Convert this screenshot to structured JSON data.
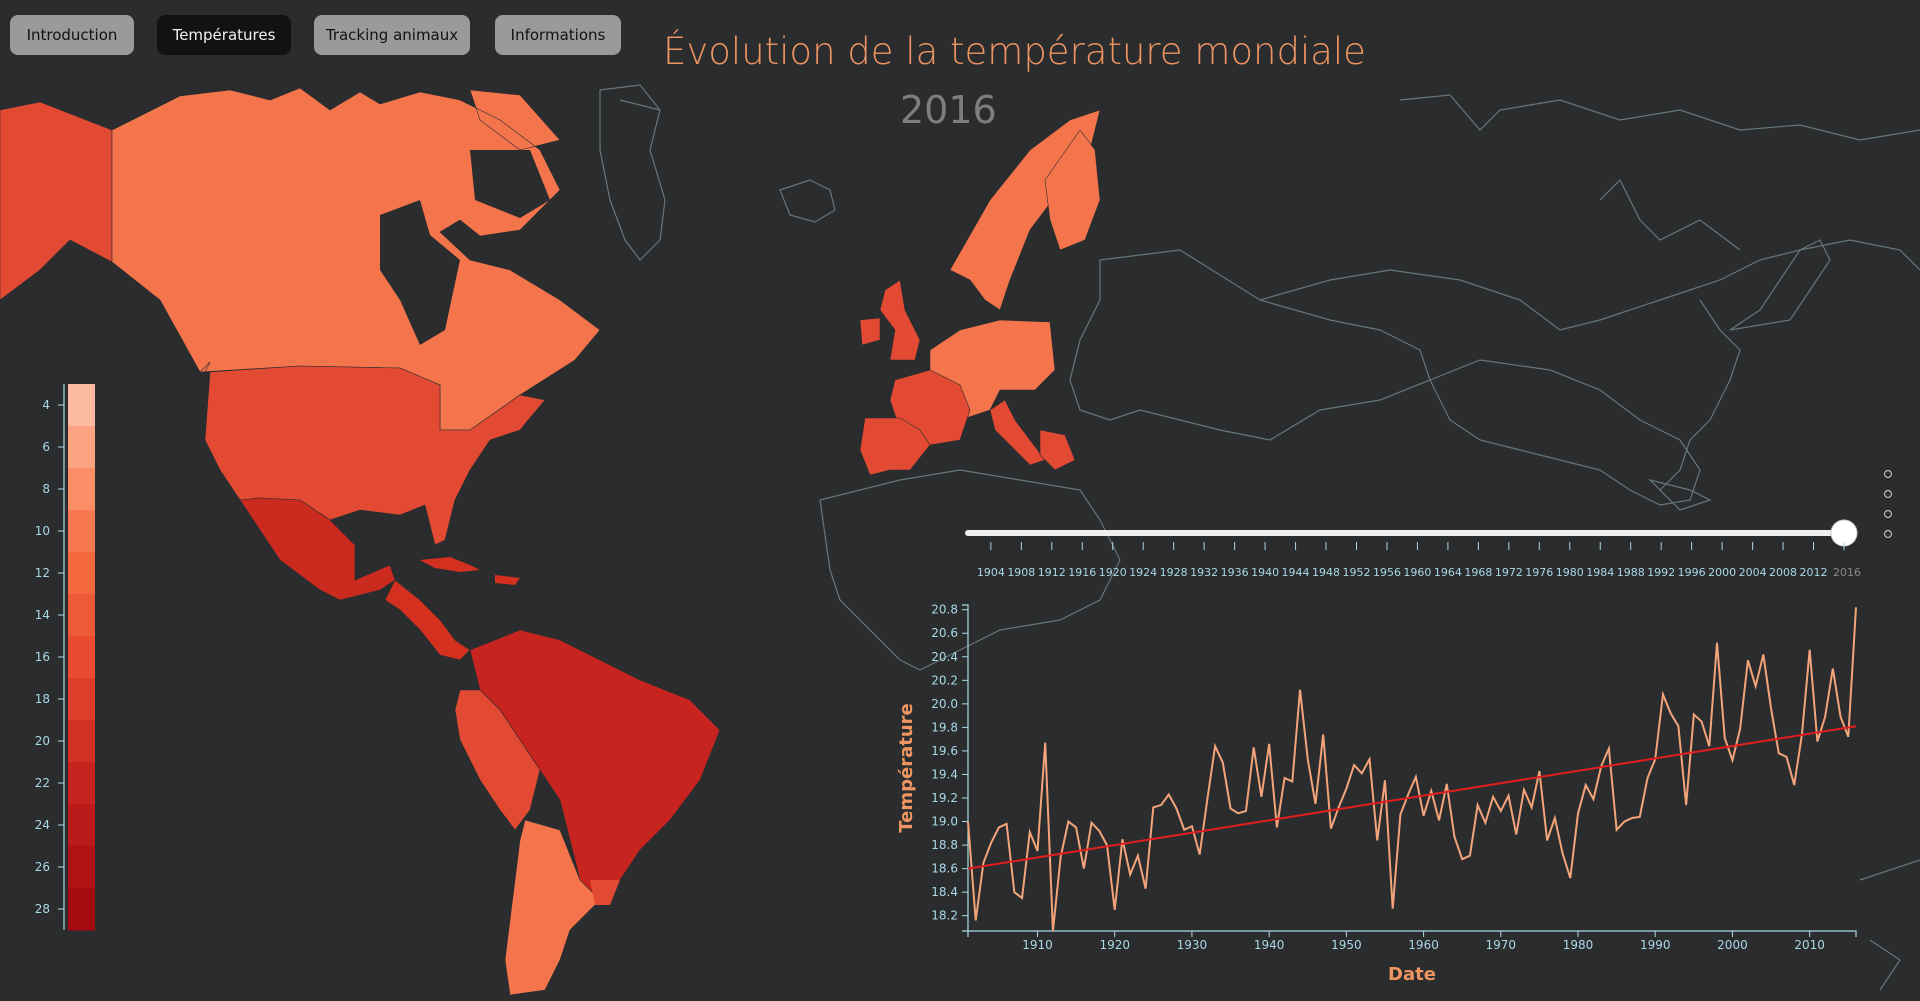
{
  "nav": {
    "items": [
      {
        "label": "Introduction",
        "active": false
      },
      {
        "label": "Températures",
        "active": true
      },
      {
        "label": "Tracking animaux",
        "active": false
      },
      {
        "label": "Informations",
        "active": false
      }
    ]
  },
  "header": {
    "title": "Évolution de la température mondiale",
    "year": "2016"
  },
  "legend": {
    "ticks": [
      "4",
      "6",
      "8",
      "10",
      "12",
      "14",
      "16",
      "18",
      "20",
      "22",
      "24",
      "26",
      "28"
    ],
    "range": [
      3,
      29
    ],
    "colors": [
      "#fcbba1",
      "#fca482",
      "#fb8e67",
      "#f8794f",
      "#f4683f",
      "#ef5a36",
      "#e84b30",
      "#de3d2a",
      "#d33024",
      "#c8241f",
      "#bb1a1a",
      "#ae1215",
      "#a30b10"
    ]
  },
  "slider": {
    "ticks": [
      "1904",
      "1908",
      "1912",
      "1916",
      "1920",
      "1924",
      "1928",
      "1932",
      "1936",
      "1940",
      "1944",
      "1948",
      "1952",
      "1956",
      "1960",
      "1964",
      "1968",
      "1972",
      "1976",
      "1980",
      "1984",
      "1988",
      "1992",
      "1996",
      "2000",
      "2004",
      "2008",
      "2012",
      "2016"
    ],
    "value": 2016,
    "min": 1901,
    "max": 2016
  },
  "pagination": {
    "dots": 4
  },
  "colors": {
    "accent": "#ee9561",
    "line": "#f4a47a",
    "trend": "#e01e1e",
    "axis": "#a9d8e6",
    "background": "#2b2c2e"
  },
  "chart_data": {
    "type": "line",
    "xlabel": "Date",
    "ylabel": "Température",
    "xlim": [
      1901,
      2016
    ],
    "ylim": [
      18.07,
      20.84
    ],
    "xticks": [
      1910,
      1920,
      1930,
      1940,
      1950,
      1960,
      1970,
      1980,
      1990,
      2000,
      2010
    ],
    "yticks": [
      18.2,
      18.4,
      18.6,
      18.8,
      19.0,
      19.2,
      19.4,
      19.6,
      19.8,
      20.0,
      20.2,
      20.4,
      20.6,
      20.8
    ],
    "series": [
      {
        "x": [
          1901,
          1902,
          1903,
          1904,
          1905,
          1906,
          1907,
          1908,
          1909,
          1910,
          1911,
          1912,
          1913,
          1914,
          1915,
          1916,
          1917,
          1918,
          1919,
          1920,
          1921,
          1922,
          1923,
          1924,
          1925,
          1926,
          1927,
          1928,
          1929,
          1930,
          1931,
          1932,
          1933,
          1934,
          1935,
          1936,
          1937,
          1938,
          1939,
          1940,
          1941,
          1942,
          1943,
          1944,
          1945,
          1946,
          1947,
          1948,
          1949,
          1950,
          1951,
          1952,
          1953,
          1954,
          1955,
          1956,
          1957,
          1958,
          1959,
          1960,
          1961,
          1962,
          1963,
          1964,
          1965,
          1966,
          1967,
          1968,
          1969,
          1970,
          1971,
          1972,
          1973,
          1974,
          1975,
          1976,
          1977,
          1978,
          1979,
          1980,
          1981,
          1982,
          1983,
          1984,
          1985,
          1986,
          1987,
          1988,
          1989,
          1990,
          1991,
          1992,
          1993,
          1994,
          1995,
          1996,
          1997,
          1998,
          1999,
          2000,
          2001,
          2002,
          2003,
          2004,
          2005,
          2006,
          2007,
          2008,
          2009,
          2010,
          2011,
          2012,
          2013,
          2014,
          2015,
          2016
        ],
        "values": [
          19.0,
          18.16,
          18.65,
          18.82,
          18.95,
          18.98,
          18.4,
          18.35,
          18.91,
          18.75,
          19.67,
          18.07,
          18.7,
          19.0,
          18.95,
          18.6,
          18.99,
          18.92,
          18.8,
          18.25,
          18.85,
          18.55,
          18.71,
          18.43,
          19.12,
          19.14,
          19.23,
          19.11,
          18.93,
          18.96,
          18.72,
          19.19,
          19.64,
          19.5,
          19.11,
          19.07,
          19.09,
          19.63,
          19.21,
          19.66,
          18.95,
          19.37,
          19.34,
          20.12,
          19.53,
          19.15,
          19.74,
          18.94,
          19.12,
          19.28,
          19.48,
          19.41,
          19.53,
          18.84,
          19.35,
          18.26,
          19.06,
          19.23,
          19.38,
          19.05,
          19.26,
          19.01,
          19.32,
          18.87,
          18.68,
          18.71,
          19.14,
          18.99,
          19.21,
          19.09,
          19.22,
          18.89,
          19.27,
          19.12,
          19.43,
          18.84,
          19.03,
          18.73,
          18.52,
          19.07,
          19.31,
          19.19,
          19.47,
          19.62,
          18.93,
          19.0,
          19.03,
          19.04,
          19.37,
          19.53,
          20.08,
          19.92,
          19.81,
          19.14,
          19.91,
          19.85,
          19.64,
          20.52,
          19.71,
          19.52,
          19.79,
          20.37,
          20.15,
          20.42,
          19.96,
          19.58,
          19.55,
          19.31,
          19.74,
          20.46,
          19.68,
          19.89,
          20.3,
          19.89,
          19.72,
          20.82
        ]
      },
      {
        "name": "",
        "x": [
          1901,
          2016
        ],
        "values": [
          18.6,
          19.81
        ]
      }
    ]
  }
}
